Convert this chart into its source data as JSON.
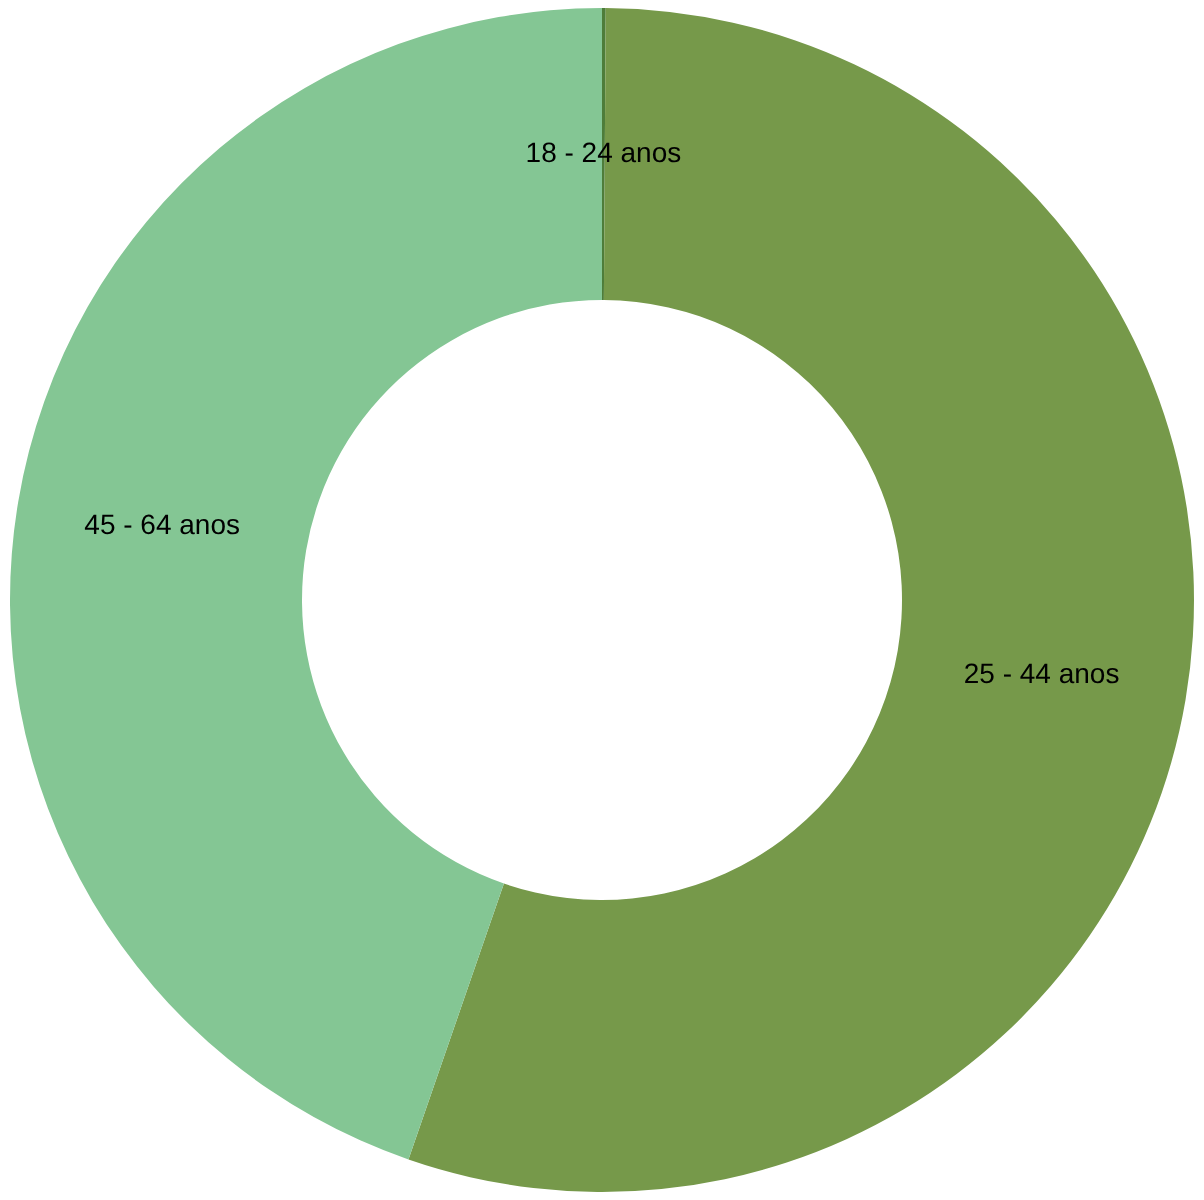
{
  "chart_data": {
    "type": "donut",
    "categories": [
      "18 - 24 anos",
      "25 - 44 anos",
      "45 - 64 anos"
    ],
    "values": [
      0.1,
      55.2,
      44.7
    ],
    "colors": [
      "#4e7d3a",
      "#76994a",
      "#84c694"
    ]
  }
}
